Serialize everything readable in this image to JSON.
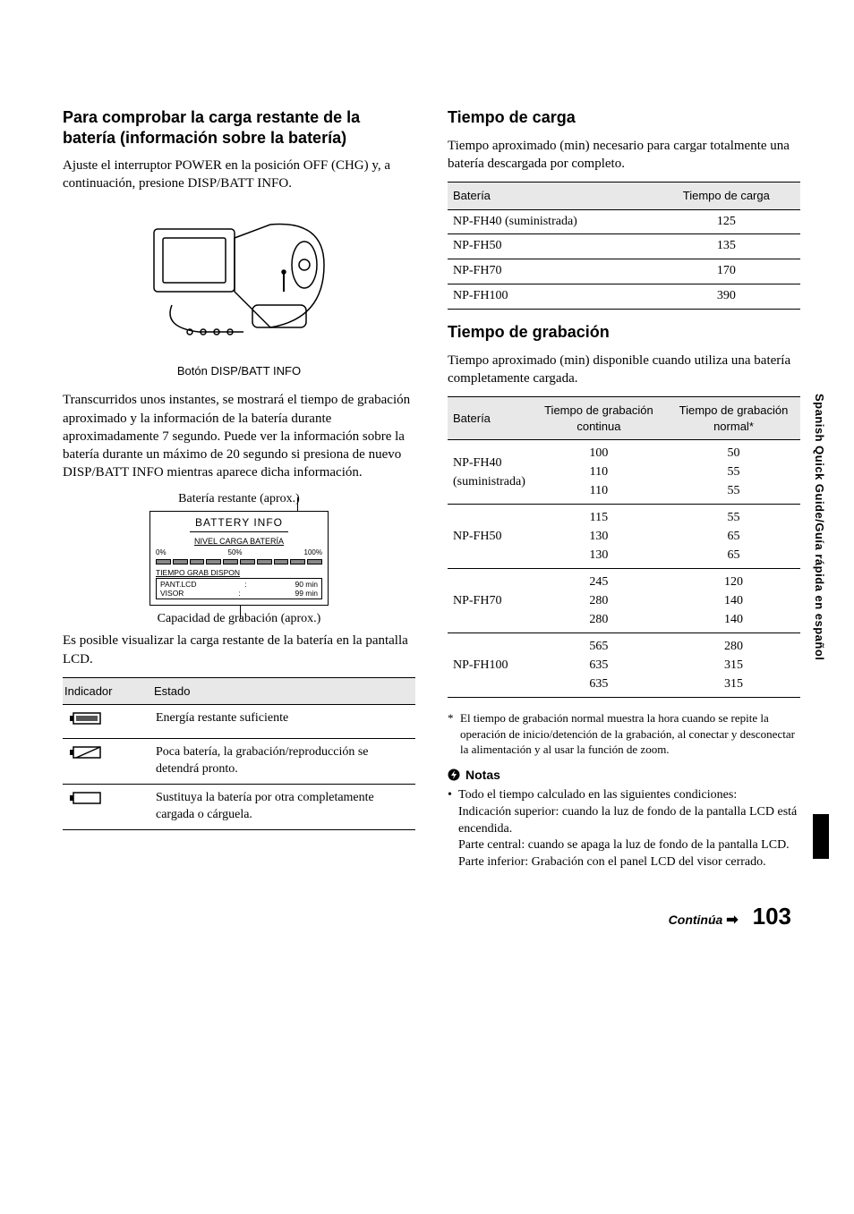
{
  "sideTab": "Spanish Quick Guide/Guía rápida en español",
  "left": {
    "h1": "Para comprobar la carga restante de la batería (información sobre la batería)",
    "p1": "Ajuste el interruptor POWER en la posición OFF (CHG) y, a continuación, presione DISP/BATT INFO.",
    "illusCaption": "Botón DISP/BATT INFO",
    "p2": "Transcurridos unos instantes, se mostrará el tiempo de grabación aproximado y la información de la batería durante aproximadamente 7 segundo. Puede ver la información sobre la batería durante un máximo de 20 segundo si presiona de nuevo DISP/BATT INFO mientras aparece dicha información.",
    "batRemainLabel": "Batería restante (aprox.)",
    "display": {
      "title": "BATTERY INFO",
      "level": "NIVEL CARGA BATERÍA",
      "p0": "0%",
      "p50": "50%",
      "p100": "100%",
      "time": "TIEMPO GRAB DISPON",
      "r1a": "PANT.LCD",
      "r1b": ":",
      "r1c": "90 min",
      "r2a": "VISOR",
      "r2b": ":",
      "r2c": "99 min"
    },
    "capCaption": "Capacidad de grabación (aprox.)",
    "p3": "Es posible visualizar la carga restante de la batería en la pantalla LCD.",
    "indTable": {
      "h1": "Indicador",
      "h2": "Estado",
      "rows": [
        {
          "state": "Energía restante suficiente"
        },
        {
          "state": "Poca batería, la grabación/reproducción se detendrá pronto."
        },
        {
          "state": "Sustituya la batería por otra completamente cargada o cárguela."
        }
      ]
    }
  },
  "right": {
    "h1": "Tiempo de carga",
    "p1": "Tiempo aproximado (min) necesario para cargar totalmente una batería descargada por completo.",
    "chargeTable": {
      "h1": "Batería",
      "h2": "Tiempo de carga",
      "rows": [
        {
          "b": "NP-FH40 (suministrada)",
          "t": "125"
        },
        {
          "b": "NP-FH50",
          "t": "135"
        },
        {
          "b": "NP-FH70",
          "t": "170"
        },
        {
          "b": "NP-FH100",
          "t": "390"
        }
      ]
    },
    "h2": "Tiempo de grabación",
    "p2": "Tiempo aproximado (min) disponible cuando utiliza una batería completamente cargada.",
    "recTable": {
      "h1": "Batería",
      "h2": "Tiempo de grabación continua",
      "h3": "Tiempo de grabación normal*",
      "rows": [
        {
          "b": "NP-FH40\n(suministrada)",
          "c": "100\n110\n110",
          "n": "50\n55\n55"
        },
        {
          "b": "NP-FH50",
          "c": "115\n130\n130",
          "n": "55\n65\n65"
        },
        {
          "b": "NP-FH70",
          "c": "245\n280\n280",
          "n": "120\n140\n140"
        },
        {
          "b": "NP-FH100",
          "c": "565\n635\n635",
          "n": "280\n315\n315"
        }
      ]
    },
    "footnoteStar": "*",
    "footnote": "El tiempo de grabación normal muestra la hora cuando se repite la operación de inicio/detención de la grabación, al conectar y desconectar la alimentación y al usar la función de zoom.",
    "notasHead": "Notas",
    "note1": "Todo el tiempo calculado en las siguientes condiciones:",
    "note1a": "Indicación superior: cuando la luz de fondo de la pantalla LCD está encendida.",
    "note1b": "Parte central: cuando se apaga la luz de fondo de la pantalla LCD.",
    "note1c": "Parte inferior: Grabación con el panel LCD del visor cerrado."
  },
  "footer": {
    "cont": "Continúa",
    "arrow": "➡",
    "page": "103"
  }
}
